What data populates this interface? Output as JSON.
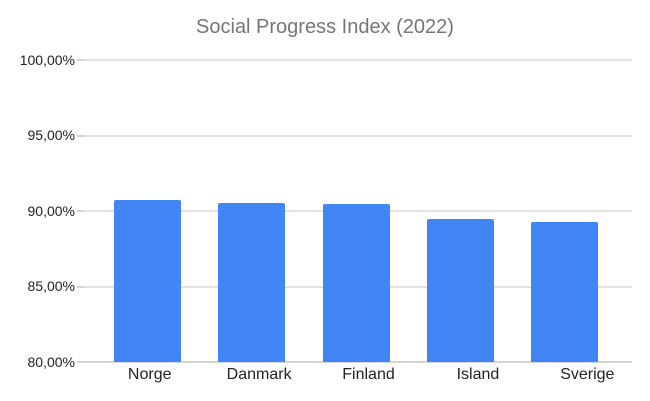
{
  "chart_data": {
    "type": "bar",
    "title": "Social Progress Index (2022)",
    "categories": [
      "Norge",
      "Danmark",
      "Finland",
      "Island",
      "Sverige"
    ],
    "values": [
      90.74,
      90.54,
      90.45,
      89.46,
      89.26
    ],
    "unit": "%",
    "xlabel": "",
    "ylabel": "",
    "ylim": [
      80,
      100
    ],
    "ytick_step": 5,
    "ytick_labels_top_to_bottom": [
      "100,00%",
      "95,00%",
      "90,00%",
      "85,00%",
      "80,00%"
    ],
    "grid": true,
    "legend": "none",
    "bar_color": "#4285f4"
  },
  "colors": {
    "bar": "#4285f4",
    "title_text": "#757575",
    "axis_text": "#222222",
    "gridline": "#e3e3e3",
    "baseline": "#d5d5d5",
    "background": "#ffffff"
  }
}
